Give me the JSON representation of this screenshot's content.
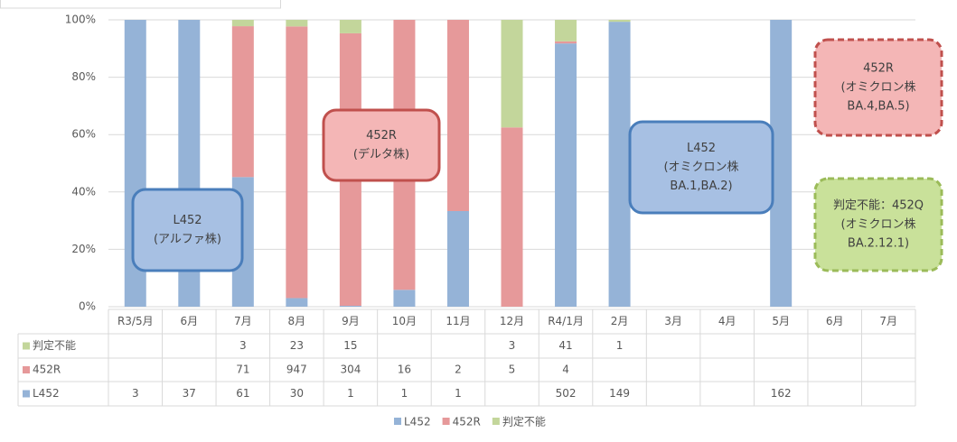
{
  "chart_data": {
    "type": "stacked_percent",
    "categories": [
      "R3/5月",
      "6月",
      "7月",
      "8月",
      "9月",
      "10月",
      "11月",
      "12月",
      "R4/1月",
      "2月",
      "3月",
      "4月",
      "5月",
      "6月",
      "7月"
    ],
    "series": [
      {
        "name": "L452",
        "color": "#95b3d7",
        "values": [
          3,
          37,
          61,
          30,
          1,
          1,
          1,
          null,
          502,
          149,
          null,
          null,
          162,
          null,
          null
        ]
      },
      {
        "name": "452R",
        "color": "#e6999a",
        "values": [
          null,
          null,
          71,
          947,
          304,
          16,
          2,
          5,
          4,
          null,
          null,
          null,
          null,
          null,
          null
        ]
      },
      {
        "name": "判定不能",
        "color": "#c3d69b",
        "values": [
          null,
          null,
          3,
          23,
          15,
          null,
          null,
          3,
          41,
          1,
          null,
          null,
          null,
          null,
          null
        ]
      }
    ],
    "ylim": [
      0,
      100
    ],
    "yticks": [
      {
        "value": 0,
        "label": "0%"
      },
      {
        "value": 20,
        "label": "20%"
      },
      {
        "value": 40,
        "label": "40%"
      },
      {
        "value": 60,
        "label": "60%"
      },
      {
        "value": 80,
        "label": "80%"
      },
      {
        "value": 100,
        "label": "100%"
      }
    ],
    "grid": true,
    "legend": "bottom",
    "annotations": [
      {
        "lines": [
          "L452",
          "(アルファ株)"
        ]
      },
      {
        "lines": [
          "452R",
          "(デルタ株)"
        ]
      },
      {
        "lines": [
          "L452",
          "(オミクロン株",
          "BA.1,BA.2)"
        ]
      },
      {
        "lines": [
          "452R",
          "(オミクロン株",
          "BA.4,BA.5)"
        ]
      },
      {
        "lines": [
          "判定不能：452Q",
          "(オミクロン株",
          "BA.2.12.1)"
        ]
      }
    ]
  }
}
